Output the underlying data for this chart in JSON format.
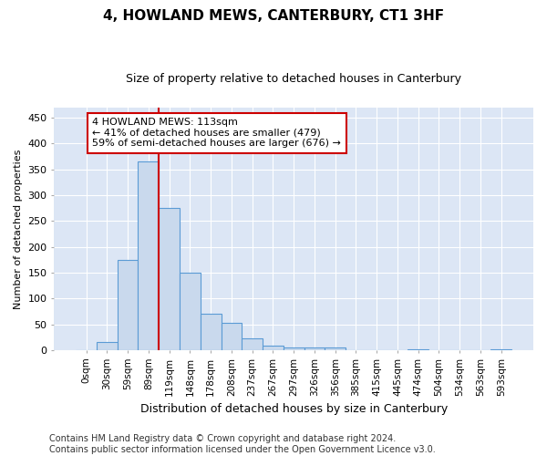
{
  "title": "4, HOWLAND MEWS, CANTERBURY, CT1 3HF",
  "subtitle": "Size of property relative to detached houses in Canterbury",
  "xlabel": "Distribution of detached houses by size in Canterbury",
  "ylabel": "Number of detached properties",
  "bar_color": "#c9d9ed",
  "bar_edge_color": "#5b9bd5",
  "background_color": "#dce6f5",
  "grid_color": "#ffffff",
  "vline_color": "#cc0000",
  "annotation_line1": "4 HOWLAND MEWS: 113sqm",
  "annotation_line2": "← 41% of detached houses are smaller (479)",
  "annotation_line3": "59% of semi-detached houses are larger (676) →",
  "annotation_box_color": "#ffffff",
  "annotation_box_edge": "#cc0000",
  "categories": [
    "0sqm",
    "30sqm",
    "59sqm",
    "89sqm",
    "119sqm",
    "148sqm",
    "178sqm",
    "208sqm",
    "237sqm",
    "267sqm",
    "297sqm",
    "326sqm",
    "356sqm",
    "385sqm",
    "415sqm",
    "445sqm",
    "474sqm",
    "504sqm",
    "534sqm",
    "563sqm",
    "593sqm"
  ],
  "values": [
    0,
    15,
    175,
    365,
    275,
    150,
    70,
    53,
    22,
    8,
    6,
    5,
    5,
    0,
    0,
    0,
    2,
    0,
    0,
    0,
    2
  ],
  "ylim": [
    0,
    470
  ],
  "yticks": [
    0,
    50,
    100,
    150,
    200,
    250,
    300,
    350,
    400,
    450
  ],
  "footer1": "Contains HM Land Registry data © Crown copyright and database right 2024.",
  "footer2": "Contains public sector information licensed under the Open Government Licence v3.0.",
  "vline_position": 3.5,
  "title_fontsize": 11,
  "subtitle_fontsize": 9,
  "ylabel_fontsize": 8,
  "xlabel_fontsize": 9,
  "tick_fontsize": 7.5,
  "ytick_fontsize": 8,
  "footer_fontsize": 7,
  "annot_fontsize": 8
}
